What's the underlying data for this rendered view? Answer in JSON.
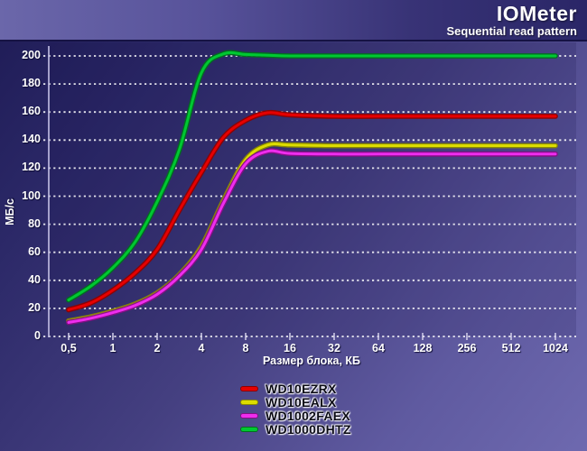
{
  "header": {
    "title": "IOMeter",
    "subtitle": "Sequential read pattern"
  },
  "chart_data": {
    "type": "line",
    "title": "IOMeter — Sequential read pattern",
    "xlabel": "Размер блока, КБ",
    "ylabel": "МБ/с",
    "x_scale": "log2",
    "x_tick_values": [
      0.5,
      1,
      2,
      4,
      8,
      16,
      32,
      64,
      128,
      256,
      512,
      1024
    ],
    "x_tick_labels": [
      "0,5",
      "1",
      "2",
      "4",
      "8",
      "16",
      "32",
      "64",
      "128",
      "256",
      "512",
      "1024"
    ],
    "ylim": [
      0,
      200
    ],
    "y_tick_step": 20,
    "y_tick_labels": [
      "0",
      "20",
      "40",
      "60",
      "80",
      "100",
      "120",
      "140",
      "160",
      "180",
      "200"
    ],
    "grid": "horizontal-dotted-white",
    "legend_position": "bottom",
    "series": [
      {
        "name": "WD10EZRX",
        "color": "#e60000",
        "edge_color": "#8f0000",
        "points": [
          [
            0.5,
            19
          ],
          [
            0.71,
            24
          ],
          [
            1,
            33
          ],
          [
            1.41,
            45
          ],
          [
            2,
            62
          ],
          [
            2.83,
            90
          ],
          [
            4,
            117
          ],
          [
            5.66,
            142
          ],
          [
            8,
            154
          ],
          [
            11.3,
            159.5
          ],
          [
            16,
            158
          ],
          [
            32,
            157
          ],
          [
            64,
            157
          ],
          [
            128,
            157
          ],
          [
            256,
            157
          ],
          [
            512,
            157
          ],
          [
            1024,
            157
          ]
        ]
      },
      {
        "name": "WD10EALX",
        "color": "#dcdc00",
        "edge_color": "#8a8a00",
        "points": [
          [
            0.5,
            11
          ],
          [
            0.71,
            14
          ],
          [
            1,
            18
          ],
          [
            1.41,
            23
          ],
          [
            2,
            31
          ],
          [
            2.83,
            44
          ],
          [
            4,
            64
          ],
          [
            5.66,
            97
          ],
          [
            8,
            126
          ],
          [
            11.3,
            136.5
          ],
          [
            16,
            136.5
          ],
          [
            32,
            136
          ],
          [
            64,
            136
          ],
          [
            128,
            136
          ],
          [
            256,
            136
          ],
          [
            512,
            136
          ],
          [
            1024,
            136
          ]
        ]
      },
      {
        "name": "WD1002FAEX",
        "color": "#ee2dee",
        "edge_color": "#860e86",
        "points": [
          [
            0.5,
            10
          ],
          [
            0.71,
            13
          ],
          [
            1,
            17
          ],
          [
            1.41,
            22
          ],
          [
            2,
            30
          ],
          [
            2.83,
            43
          ],
          [
            4,
            62
          ],
          [
            5.66,
            95
          ],
          [
            8,
            123
          ],
          [
            11.3,
            132
          ],
          [
            16,
            130.5
          ],
          [
            32,
            130
          ],
          [
            64,
            130
          ],
          [
            128,
            130
          ],
          [
            256,
            130
          ],
          [
            512,
            130
          ],
          [
            1024,
            130
          ]
        ]
      },
      {
        "name": "WD1000DHTZ",
        "color": "#00c832",
        "edge_color": "#00701c",
        "points": [
          [
            0.5,
            26
          ],
          [
            0.71,
            36
          ],
          [
            1,
            49
          ],
          [
            1.41,
            67
          ],
          [
            2,
            96
          ],
          [
            2.83,
            133
          ],
          [
            4,
            188
          ],
          [
            5.66,
            201.5
          ],
          [
            8,
            201
          ],
          [
            11.3,
            200.5
          ],
          [
            16,
            200
          ],
          [
            32,
            200
          ],
          [
            64,
            200
          ],
          [
            128,
            200
          ],
          [
            256,
            200
          ],
          [
            512,
            200
          ],
          [
            1024,
            200
          ]
        ]
      }
    ]
  }
}
